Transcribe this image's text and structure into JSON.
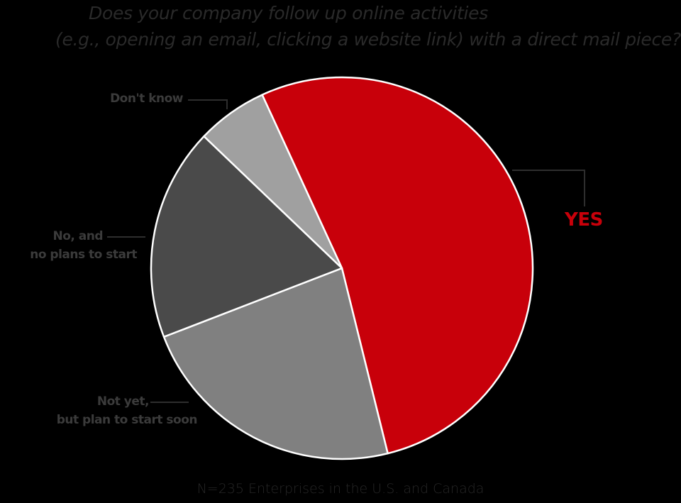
{
  "title": {
    "line1": "Does your company follow up online activities",
    "line2": "(e.g., opening an email, clicking a website link) with a direct mail piece?"
  },
  "footer": "N=235 Enterprises in the U.S. and Canada",
  "labels": {
    "yes": "YES",
    "dont_know": "Don't know",
    "no_line1": "No, and",
    "no_line2": "no plans to start",
    "not_yet_line1": "Not yet,",
    "not_yet_line2": "but plan to start soon"
  },
  "colors": {
    "background": "#000000",
    "yes": "#c8000a",
    "not_yet": "#808080",
    "no_plans": "#4a4a4a",
    "dont_know": "#a0a0a0",
    "separator": "#ffffff"
  },
  "chart_data": {
    "type": "pie",
    "title": "Does your company follow up online activities (e.g., opening an email, clicking a website link) with a direct mail piece?",
    "subtitle": "N=235 Enterprises in the U.S. and Canada",
    "categories": [
      "YES",
      "Not yet, but plan to start soon",
      "No, and no plans to start",
      "Don't know"
    ],
    "values": [
      53,
      23,
      18,
      6
    ],
    "unit": "% (estimated from slice angles)",
    "start_angle_deg": -24.7,
    "direction": "clockwise",
    "legend": "none (direct labels with leader lines)"
  }
}
